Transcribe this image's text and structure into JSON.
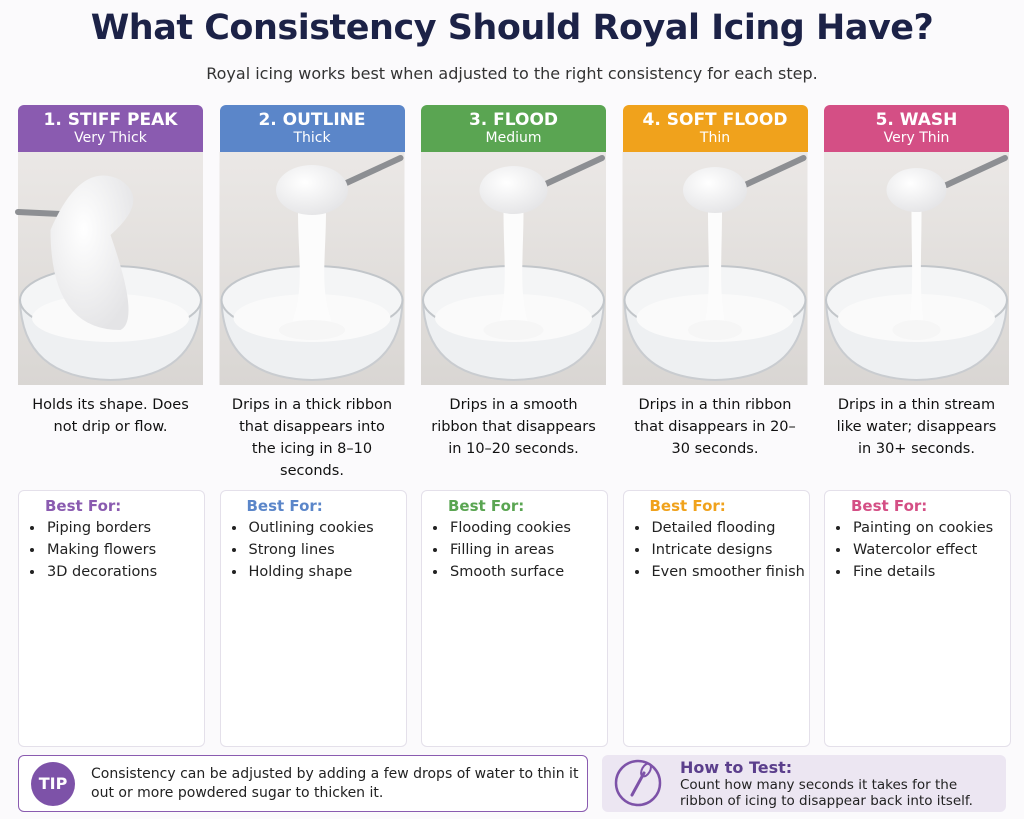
{
  "header": {
    "title": "What Consistency Should Royal Icing Have?",
    "subtitle": "Royal icing works best when adjusted to the right consistency for each step."
  },
  "columns": [
    {
      "label": "1. STIFF PEAK",
      "sublabel": "Very Thick",
      "color": "#8a5bb0",
      "description": "Holds its shape. Does not drip or flow.",
      "best_for_title": "Best For:",
      "best_for": [
        "Piping borders",
        "Making flowers",
        "3D decorations"
      ]
    },
    {
      "label": "2. OUTLINE",
      "sublabel": "Thick",
      "color": "#5b86c9",
      "description": "Drips in a thick ribbon that disappears into the icing in 8–10 seconds.",
      "best_for_title": "Best For:",
      "best_for": [
        "Outlining cookies",
        "Strong lines",
        "Holding shape"
      ]
    },
    {
      "label": "3. FLOOD",
      "sublabel": "Medium",
      "color": "#5aa552",
      "description": "Drips in a smooth ribbon that disappears in 10–20 seconds.",
      "best_for_title": "Best For:",
      "best_for": [
        "Flooding cookies",
        "Filling in areas",
        "Smooth surface"
      ]
    },
    {
      "label": "4. SOFT FLOOD",
      "sublabel": "Thin",
      "color": "#f0a21c",
      "description": "Drips in a thin ribbon that disappears in 20–30 seconds.",
      "best_for_title": "Best For:",
      "best_for": [
        "Detailed flooding",
        "Intricate designs",
        "Even smoother finish"
      ]
    },
    {
      "label": "5. WASH",
      "sublabel": "Very Thin",
      "color": "#d44f85",
      "description": "Drips in a thin stream like water; disappears in 30+ seconds.",
      "best_for_title": "Best For:",
      "best_for": [
        "Painting on cookies",
        "Watercolor effect",
        "Fine details"
      ]
    }
  ],
  "tip": {
    "badge": "TIP",
    "text": "Consistency can be adjusted by adding a few drops of water to thin it out or more powdered sugar to thicken it."
  },
  "how_to_test": {
    "title": "How to Test:",
    "text": "Count how many seconds it takes for the ribbon of icing to disappear back into itself."
  }
}
